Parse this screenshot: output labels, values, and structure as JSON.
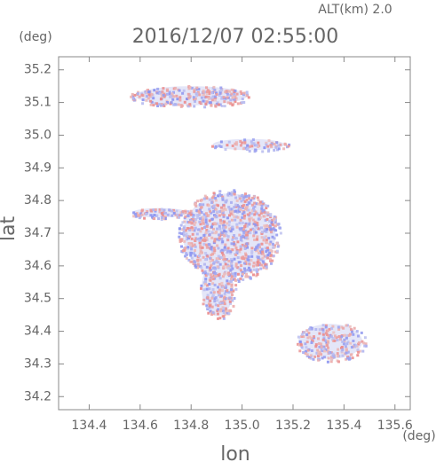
{
  "chart_data": {
    "type": "map",
    "title": "2016/12/07 02:55:00",
    "annotation": "ALT(km) 2.0",
    "x_label": "lon",
    "y_label": "lat",
    "x_unit": "(deg)",
    "y_unit": "(deg)",
    "xlim": [
      134.28,
      135.66
    ],
    "ylim": [
      34.16,
      35.24
    ],
    "xticks": [
      {
        "value": 134.4,
        "label": "134.4"
      },
      {
        "value": 134.6,
        "label": "134.6"
      },
      {
        "value": 134.8,
        "label": "134.8"
      },
      {
        "value": 135.0,
        "label": "135.0"
      },
      {
        "value": 135.2,
        "label": "135.2"
      },
      {
        "value": 135.4,
        "label": "135.4"
      },
      {
        "value": 135.6,
        "label": "135.6"
      }
    ],
    "yticks": [
      {
        "value": 34.2,
        "label": "34.2"
      },
      {
        "value": 34.3,
        "label": "34.3"
      },
      {
        "value": 34.4,
        "label": "34.4"
      },
      {
        "value": 34.5,
        "label": "34.5"
      },
      {
        "value": 34.6,
        "label": "34.6"
      },
      {
        "value": 34.7,
        "label": "34.7"
      },
      {
        "value": 34.8,
        "label": "34.8"
      },
      {
        "value": 34.9,
        "label": "34.9"
      },
      {
        "value": 35.0,
        "label": "35.0"
      },
      {
        "value": 35.1,
        "label": "35.1"
      },
      {
        "value": 35.2,
        "label": "35.2"
      }
    ]
  }
}
